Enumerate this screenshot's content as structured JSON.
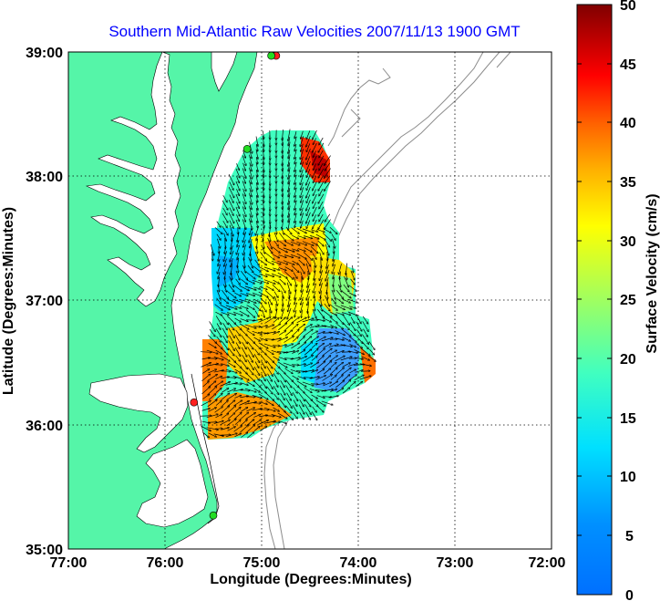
{
  "map": {
    "title": "Southern Mid-Atlantic Raw Velocities 2007/11/13 1900 GMT",
    "xlabel": "Longitude (Degrees:Minutes)",
    "ylabel": "Latitude (Degrees:Minutes)",
    "x_ticks": [
      "77:00",
      "76:00",
      "75:00",
      "74:00",
      "73:00",
      "72:00"
    ],
    "y_ticks": [
      "39:00",
      "38:00",
      "37:00",
      "36:00",
      "35:00"
    ],
    "lon_range": [
      -77,
      -72
    ],
    "lat_range": [
      35,
      39
    ],
    "grid": true,
    "colors": {
      "land": "#55f5a8",
      "title": "#0000ff",
      "bathymetry": "#8c8c8c",
      "arrows": "#000000",
      "station_red": "#ff2020",
      "station_green": "#22dd22"
    },
    "stations": [
      {
        "lon": -74.85,
        "lat": 38.97,
        "color": "red"
      },
      {
        "lon": -74.9,
        "lat": 38.97,
        "color": "green"
      },
      {
        "lon": -75.15,
        "lat": 38.22,
        "color": "green"
      },
      {
        "lon": -75.7,
        "lat": 36.18,
        "color": "red"
      },
      {
        "lon": -75.5,
        "lat": 35.27,
        "color": "green"
      }
    ]
  },
  "colorbar": {
    "label": "Surface Velocity (cm/s)",
    "ticks": [
      "50",
      "45",
      "40",
      "35",
      "30",
      "25",
      "20",
      "15",
      "10",
      "5",
      "0"
    ],
    "range": [
      0,
      50
    ],
    "unit": "cm/s",
    "colormap": "jet"
  }
}
